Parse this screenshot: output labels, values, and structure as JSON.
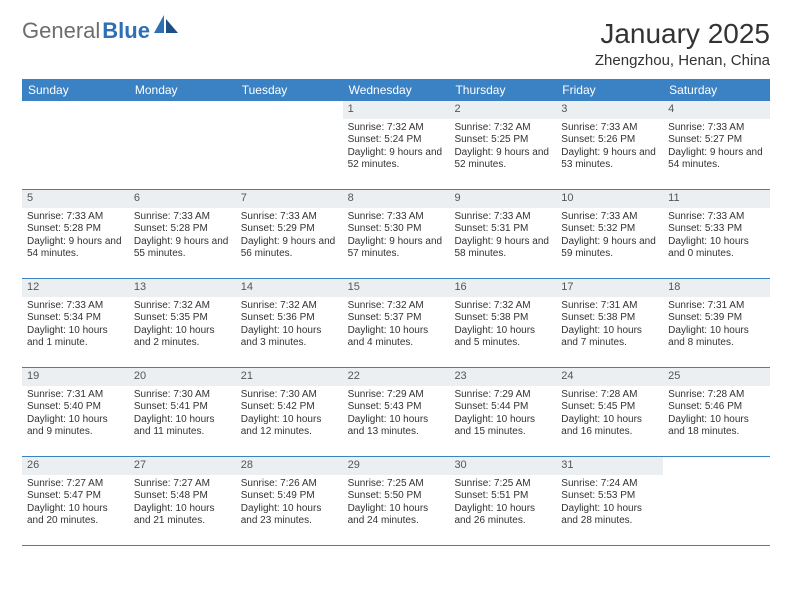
{
  "logo": {
    "part1": "General",
    "part2": "Blue"
  },
  "title": "January 2025",
  "location": "Zhengzhou, Henan, China",
  "colors": {
    "header_bg": "#3b82c4",
    "header_text": "#ffffff",
    "daynum_bg": "#eceff1",
    "border": "#3b82c4",
    "text": "#333333",
    "logo_gray": "#6d6d6d",
    "logo_blue": "#2f6fb5"
  },
  "dayHeaders": [
    "Sunday",
    "Monday",
    "Tuesday",
    "Wednesday",
    "Thursday",
    "Friday",
    "Saturday"
  ],
  "weeks": [
    [
      {
        "num": "",
        "sunrise": "",
        "sunset": "",
        "daylight": ""
      },
      {
        "num": "",
        "sunrise": "",
        "sunset": "",
        "daylight": ""
      },
      {
        "num": "",
        "sunrise": "",
        "sunset": "",
        "daylight": ""
      },
      {
        "num": "1",
        "sunrise": "Sunrise: 7:32 AM",
        "sunset": "Sunset: 5:24 PM",
        "daylight": "Daylight: 9 hours and 52 minutes."
      },
      {
        "num": "2",
        "sunrise": "Sunrise: 7:32 AM",
        "sunset": "Sunset: 5:25 PM",
        "daylight": "Daylight: 9 hours and 52 minutes."
      },
      {
        "num": "3",
        "sunrise": "Sunrise: 7:33 AM",
        "sunset": "Sunset: 5:26 PM",
        "daylight": "Daylight: 9 hours and 53 minutes."
      },
      {
        "num": "4",
        "sunrise": "Sunrise: 7:33 AM",
        "sunset": "Sunset: 5:27 PM",
        "daylight": "Daylight: 9 hours and 54 minutes."
      }
    ],
    [
      {
        "num": "5",
        "sunrise": "Sunrise: 7:33 AM",
        "sunset": "Sunset: 5:28 PM",
        "daylight": "Daylight: 9 hours and 54 minutes."
      },
      {
        "num": "6",
        "sunrise": "Sunrise: 7:33 AM",
        "sunset": "Sunset: 5:28 PM",
        "daylight": "Daylight: 9 hours and 55 minutes."
      },
      {
        "num": "7",
        "sunrise": "Sunrise: 7:33 AM",
        "sunset": "Sunset: 5:29 PM",
        "daylight": "Daylight: 9 hours and 56 minutes."
      },
      {
        "num": "8",
        "sunrise": "Sunrise: 7:33 AM",
        "sunset": "Sunset: 5:30 PM",
        "daylight": "Daylight: 9 hours and 57 minutes."
      },
      {
        "num": "9",
        "sunrise": "Sunrise: 7:33 AM",
        "sunset": "Sunset: 5:31 PM",
        "daylight": "Daylight: 9 hours and 58 minutes."
      },
      {
        "num": "10",
        "sunrise": "Sunrise: 7:33 AM",
        "sunset": "Sunset: 5:32 PM",
        "daylight": "Daylight: 9 hours and 59 minutes."
      },
      {
        "num": "11",
        "sunrise": "Sunrise: 7:33 AM",
        "sunset": "Sunset: 5:33 PM",
        "daylight": "Daylight: 10 hours and 0 minutes."
      }
    ],
    [
      {
        "num": "12",
        "sunrise": "Sunrise: 7:33 AM",
        "sunset": "Sunset: 5:34 PM",
        "daylight": "Daylight: 10 hours and 1 minute."
      },
      {
        "num": "13",
        "sunrise": "Sunrise: 7:32 AM",
        "sunset": "Sunset: 5:35 PM",
        "daylight": "Daylight: 10 hours and 2 minutes."
      },
      {
        "num": "14",
        "sunrise": "Sunrise: 7:32 AM",
        "sunset": "Sunset: 5:36 PM",
        "daylight": "Daylight: 10 hours and 3 minutes."
      },
      {
        "num": "15",
        "sunrise": "Sunrise: 7:32 AM",
        "sunset": "Sunset: 5:37 PM",
        "daylight": "Daylight: 10 hours and 4 minutes."
      },
      {
        "num": "16",
        "sunrise": "Sunrise: 7:32 AM",
        "sunset": "Sunset: 5:38 PM",
        "daylight": "Daylight: 10 hours and 5 minutes."
      },
      {
        "num": "17",
        "sunrise": "Sunrise: 7:31 AM",
        "sunset": "Sunset: 5:38 PM",
        "daylight": "Daylight: 10 hours and 7 minutes."
      },
      {
        "num": "18",
        "sunrise": "Sunrise: 7:31 AM",
        "sunset": "Sunset: 5:39 PM",
        "daylight": "Daylight: 10 hours and 8 minutes."
      }
    ],
    [
      {
        "num": "19",
        "sunrise": "Sunrise: 7:31 AM",
        "sunset": "Sunset: 5:40 PM",
        "daylight": "Daylight: 10 hours and 9 minutes."
      },
      {
        "num": "20",
        "sunrise": "Sunrise: 7:30 AM",
        "sunset": "Sunset: 5:41 PM",
        "daylight": "Daylight: 10 hours and 11 minutes."
      },
      {
        "num": "21",
        "sunrise": "Sunrise: 7:30 AM",
        "sunset": "Sunset: 5:42 PM",
        "daylight": "Daylight: 10 hours and 12 minutes."
      },
      {
        "num": "22",
        "sunrise": "Sunrise: 7:29 AM",
        "sunset": "Sunset: 5:43 PM",
        "daylight": "Daylight: 10 hours and 13 minutes."
      },
      {
        "num": "23",
        "sunrise": "Sunrise: 7:29 AM",
        "sunset": "Sunset: 5:44 PM",
        "daylight": "Daylight: 10 hours and 15 minutes."
      },
      {
        "num": "24",
        "sunrise": "Sunrise: 7:28 AM",
        "sunset": "Sunset: 5:45 PM",
        "daylight": "Daylight: 10 hours and 16 minutes."
      },
      {
        "num": "25",
        "sunrise": "Sunrise: 7:28 AM",
        "sunset": "Sunset: 5:46 PM",
        "daylight": "Daylight: 10 hours and 18 minutes."
      }
    ],
    [
      {
        "num": "26",
        "sunrise": "Sunrise: 7:27 AM",
        "sunset": "Sunset: 5:47 PM",
        "daylight": "Daylight: 10 hours and 20 minutes."
      },
      {
        "num": "27",
        "sunrise": "Sunrise: 7:27 AM",
        "sunset": "Sunset: 5:48 PM",
        "daylight": "Daylight: 10 hours and 21 minutes."
      },
      {
        "num": "28",
        "sunrise": "Sunrise: 7:26 AM",
        "sunset": "Sunset: 5:49 PM",
        "daylight": "Daylight: 10 hours and 23 minutes."
      },
      {
        "num": "29",
        "sunrise": "Sunrise: 7:25 AM",
        "sunset": "Sunset: 5:50 PM",
        "daylight": "Daylight: 10 hours and 24 minutes."
      },
      {
        "num": "30",
        "sunrise": "Sunrise: 7:25 AM",
        "sunset": "Sunset: 5:51 PM",
        "daylight": "Daylight: 10 hours and 26 minutes."
      },
      {
        "num": "31",
        "sunrise": "Sunrise: 7:24 AM",
        "sunset": "Sunset: 5:53 PM",
        "daylight": "Daylight: 10 hours and 28 minutes."
      },
      {
        "num": "",
        "sunrise": "",
        "sunset": "",
        "daylight": ""
      }
    ]
  ]
}
